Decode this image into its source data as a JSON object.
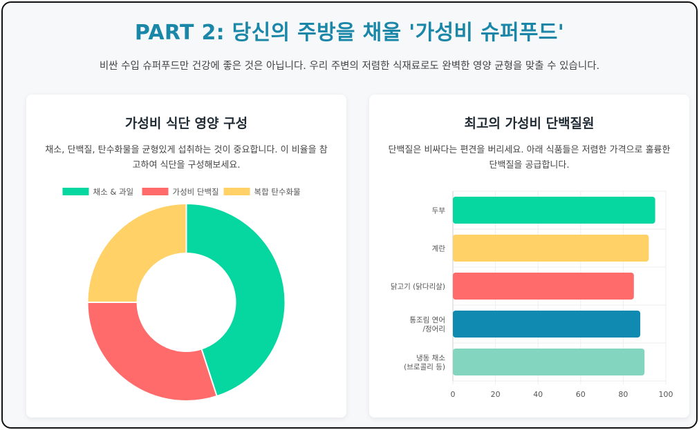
{
  "header": {
    "title": "PART 2: 당신의 주방을 채울 '가성비 슈퍼푸드'",
    "subtitle": "비싼 수입 슈퍼푸드만 건강에 좋은 것은 아닙니다. 우리 주변의 저렴한 식재료로도 완벽한 영양 균형을 맞출 수 있습니다."
  },
  "left_card": {
    "title": "가성비 식단 영양 구성",
    "desc": "채소, 단백질, 탄수화물을 균형있게 섭취하는 것이 중요합니다. 이 비율을 참고하여 식단을 구성해보세요."
  },
  "right_card": {
    "title": "최고의 가성비 단백질원",
    "desc": "단백질은 비싸다는 편견을 버리세요. 아래 식품들은 저렴한 가격으로 훌륭한 단백질을 공급합니다."
  },
  "chart_data": [
    {
      "type": "pie",
      "donut": true,
      "legend_position": "top",
      "labels": [
        "채소 & 과일",
        "가성비 단백질",
        "복합 탄수화물"
      ],
      "values": [
        45,
        30,
        25
      ],
      "colors": [
        "#06d6a0",
        "#ff6b6b",
        "#ffd166"
      ]
    },
    {
      "type": "bar",
      "orientation": "horizontal",
      "categories": [
        [
          "두부"
        ],
        [
          "계란"
        ],
        [
          "닭고기 (닭다리살)"
        ],
        [
          "통조림 연어",
          "/정어리"
        ],
        [
          "냉동 채소",
          "(브로콜리 등)"
        ]
      ],
      "values": [
        95,
        92,
        85,
        88,
        90
      ],
      "colors": [
        "#06d6a0",
        "#ffd166",
        "#ff6b6b",
        "#118ab2",
        "#83d5c0"
      ],
      "xlim": [
        0,
        100
      ],
      "xticks": [
        0,
        20,
        40,
        60,
        80,
        100
      ],
      "grid": true,
      "legend": false
    }
  ]
}
